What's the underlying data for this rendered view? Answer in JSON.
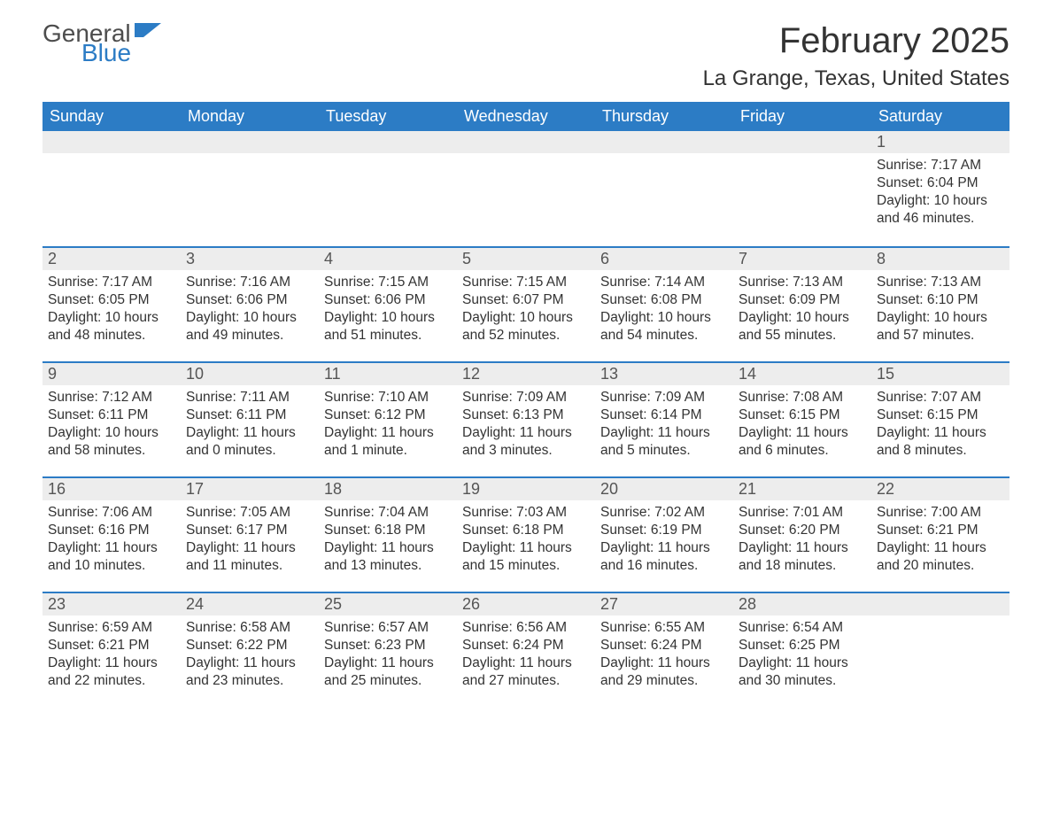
{
  "logo": {
    "text1": "General",
    "text2": "Blue"
  },
  "title": "February 2025",
  "location": "La Grange, Texas, United States",
  "colors": {
    "header_bg": "#2c7cc5",
    "header_text": "#ffffff",
    "daynum_bg": "#ededed",
    "border_top": "#2c7cc5",
    "body_text": "#333333",
    "logo_gray": "#4d4d4d",
    "logo_blue": "#2c7cc5"
  },
  "weekdays": [
    "Sunday",
    "Monday",
    "Tuesday",
    "Wednesday",
    "Thursday",
    "Friday",
    "Saturday"
  ],
  "weeks": [
    [
      {
        "day": "",
        "sunrise": "",
        "sunset": "",
        "daylight": ""
      },
      {
        "day": "",
        "sunrise": "",
        "sunset": "",
        "daylight": ""
      },
      {
        "day": "",
        "sunrise": "",
        "sunset": "",
        "daylight": ""
      },
      {
        "day": "",
        "sunrise": "",
        "sunset": "",
        "daylight": ""
      },
      {
        "day": "",
        "sunrise": "",
        "sunset": "",
        "daylight": ""
      },
      {
        "day": "",
        "sunrise": "",
        "sunset": "",
        "daylight": ""
      },
      {
        "day": "1",
        "sunrise": "Sunrise: 7:17 AM",
        "sunset": "Sunset: 6:04 PM",
        "daylight": "Daylight: 10 hours and 46 minutes."
      }
    ],
    [
      {
        "day": "2",
        "sunrise": "Sunrise: 7:17 AM",
        "sunset": "Sunset: 6:05 PM",
        "daylight": "Daylight: 10 hours and 48 minutes."
      },
      {
        "day": "3",
        "sunrise": "Sunrise: 7:16 AM",
        "sunset": "Sunset: 6:06 PM",
        "daylight": "Daylight: 10 hours and 49 minutes."
      },
      {
        "day": "4",
        "sunrise": "Sunrise: 7:15 AM",
        "sunset": "Sunset: 6:06 PM",
        "daylight": "Daylight: 10 hours and 51 minutes."
      },
      {
        "day": "5",
        "sunrise": "Sunrise: 7:15 AM",
        "sunset": "Sunset: 6:07 PM",
        "daylight": "Daylight: 10 hours and 52 minutes."
      },
      {
        "day": "6",
        "sunrise": "Sunrise: 7:14 AM",
        "sunset": "Sunset: 6:08 PM",
        "daylight": "Daylight: 10 hours and 54 minutes."
      },
      {
        "day": "7",
        "sunrise": "Sunrise: 7:13 AM",
        "sunset": "Sunset: 6:09 PM",
        "daylight": "Daylight: 10 hours and 55 minutes."
      },
      {
        "day": "8",
        "sunrise": "Sunrise: 7:13 AM",
        "sunset": "Sunset: 6:10 PM",
        "daylight": "Daylight: 10 hours and 57 minutes."
      }
    ],
    [
      {
        "day": "9",
        "sunrise": "Sunrise: 7:12 AM",
        "sunset": "Sunset: 6:11 PM",
        "daylight": "Daylight: 10 hours and 58 minutes."
      },
      {
        "day": "10",
        "sunrise": "Sunrise: 7:11 AM",
        "sunset": "Sunset: 6:11 PM",
        "daylight": "Daylight: 11 hours and 0 minutes."
      },
      {
        "day": "11",
        "sunrise": "Sunrise: 7:10 AM",
        "sunset": "Sunset: 6:12 PM",
        "daylight": "Daylight: 11 hours and 1 minute."
      },
      {
        "day": "12",
        "sunrise": "Sunrise: 7:09 AM",
        "sunset": "Sunset: 6:13 PM",
        "daylight": "Daylight: 11 hours and 3 minutes."
      },
      {
        "day": "13",
        "sunrise": "Sunrise: 7:09 AM",
        "sunset": "Sunset: 6:14 PM",
        "daylight": "Daylight: 11 hours and 5 minutes."
      },
      {
        "day": "14",
        "sunrise": "Sunrise: 7:08 AM",
        "sunset": "Sunset: 6:15 PM",
        "daylight": "Daylight: 11 hours and 6 minutes."
      },
      {
        "day": "15",
        "sunrise": "Sunrise: 7:07 AM",
        "sunset": "Sunset: 6:15 PM",
        "daylight": "Daylight: 11 hours and 8 minutes."
      }
    ],
    [
      {
        "day": "16",
        "sunrise": "Sunrise: 7:06 AM",
        "sunset": "Sunset: 6:16 PM",
        "daylight": "Daylight: 11 hours and 10 minutes."
      },
      {
        "day": "17",
        "sunrise": "Sunrise: 7:05 AM",
        "sunset": "Sunset: 6:17 PM",
        "daylight": "Daylight: 11 hours and 11 minutes."
      },
      {
        "day": "18",
        "sunrise": "Sunrise: 7:04 AM",
        "sunset": "Sunset: 6:18 PM",
        "daylight": "Daylight: 11 hours and 13 minutes."
      },
      {
        "day": "19",
        "sunrise": "Sunrise: 7:03 AM",
        "sunset": "Sunset: 6:18 PM",
        "daylight": "Daylight: 11 hours and 15 minutes."
      },
      {
        "day": "20",
        "sunrise": "Sunrise: 7:02 AM",
        "sunset": "Sunset: 6:19 PM",
        "daylight": "Daylight: 11 hours and 16 minutes."
      },
      {
        "day": "21",
        "sunrise": "Sunrise: 7:01 AM",
        "sunset": "Sunset: 6:20 PM",
        "daylight": "Daylight: 11 hours and 18 minutes."
      },
      {
        "day": "22",
        "sunrise": "Sunrise: 7:00 AM",
        "sunset": "Sunset: 6:21 PM",
        "daylight": "Daylight: 11 hours and 20 minutes."
      }
    ],
    [
      {
        "day": "23",
        "sunrise": "Sunrise: 6:59 AM",
        "sunset": "Sunset: 6:21 PM",
        "daylight": "Daylight: 11 hours and 22 minutes."
      },
      {
        "day": "24",
        "sunrise": "Sunrise: 6:58 AM",
        "sunset": "Sunset: 6:22 PM",
        "daylight": "Daylight: 11 hours and 23 minutes."
      },
      {
        "day": "25",
        "sunrise": "Sunrise: 6:57 AM",
        "sunset": "Sunset: 6:23 PM",
        "daylight": "Daylight: 11 hours and 25 minutes."
      },
      {
        "day": "26",
        "sunrise": "Sunrise: 6:56 AM",
        "sunset": "Sunset: 6:24 PM",
        "daylight": "Daylight: 11 hours and 27 minutes."
      },
      {
        "day": "27",
        "sunrise": "Sunrise: 6:55 AM",
        "sunset": "Sunset: 6:24 PM",
        "daylight": "Daylight: 11 hours and 29 minutes."
      },
      {
        "day": "28",
        "sunrise": "Sunrise: 6:54 AM",
        "sunset": "Sunset: 6:25 PM",
        "daylight": "Daylight: 11 hours and 30 minutes."
      },
      {
        "day": "",
        "sunrise": "",
        "sunset": "",
        "daylight": ""
      }
    ]
  ]
}
